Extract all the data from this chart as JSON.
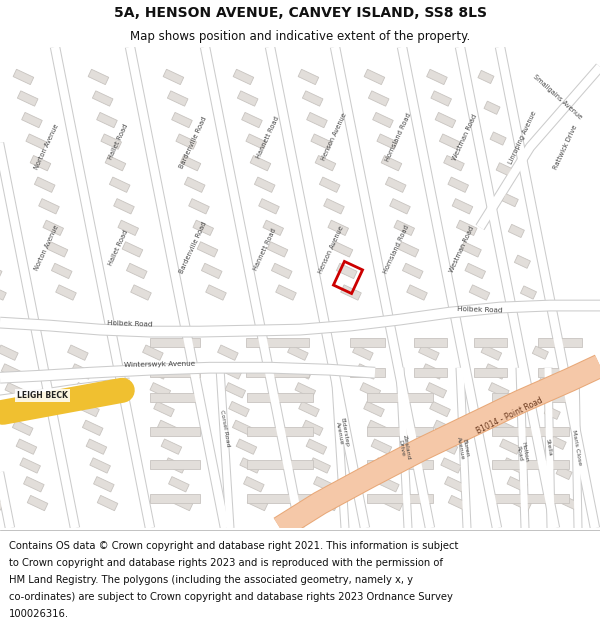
{
  "title": "5A, HENSON AVENUE, CANVEY ISLAND, SS8 8LS",
  "subtitle": "Map shows position and indicative extent of the property.",
  "bg_color": "#f0eeeb",
  "road_color": "#ffffff",
  "road_stroke": "#cccccc",
  "building_color": "#e2deda",
  "building_stroke": "#c8c4c0",
  "main_road_color": "#f5c8a8",
  "main_road_stroke": "#e8a878",
  "highlight_color": "#cc0000",
  "road_label_color": "#444444",
  "water_color": "#f0c030",
  "title_fontsize": 10,
  "subtitle_fontsize": 8.5,
  "footer_fontsize": 7.2,
  "text_color": "#111111",
  "footer_lines": [
    "Contains OS data © Crown copyright and database right 2021. This information is subject",
    "to Crown copyright and database rights 2023 and is reproduced with the permission of",
    "HM Land Registry. The polygons (including the associated geometry, namely x, y",
    "co-ordinates) are subject to Crown copyright and database rights 2023 Ordnance Survey",
    "100026316."
  ]
}
